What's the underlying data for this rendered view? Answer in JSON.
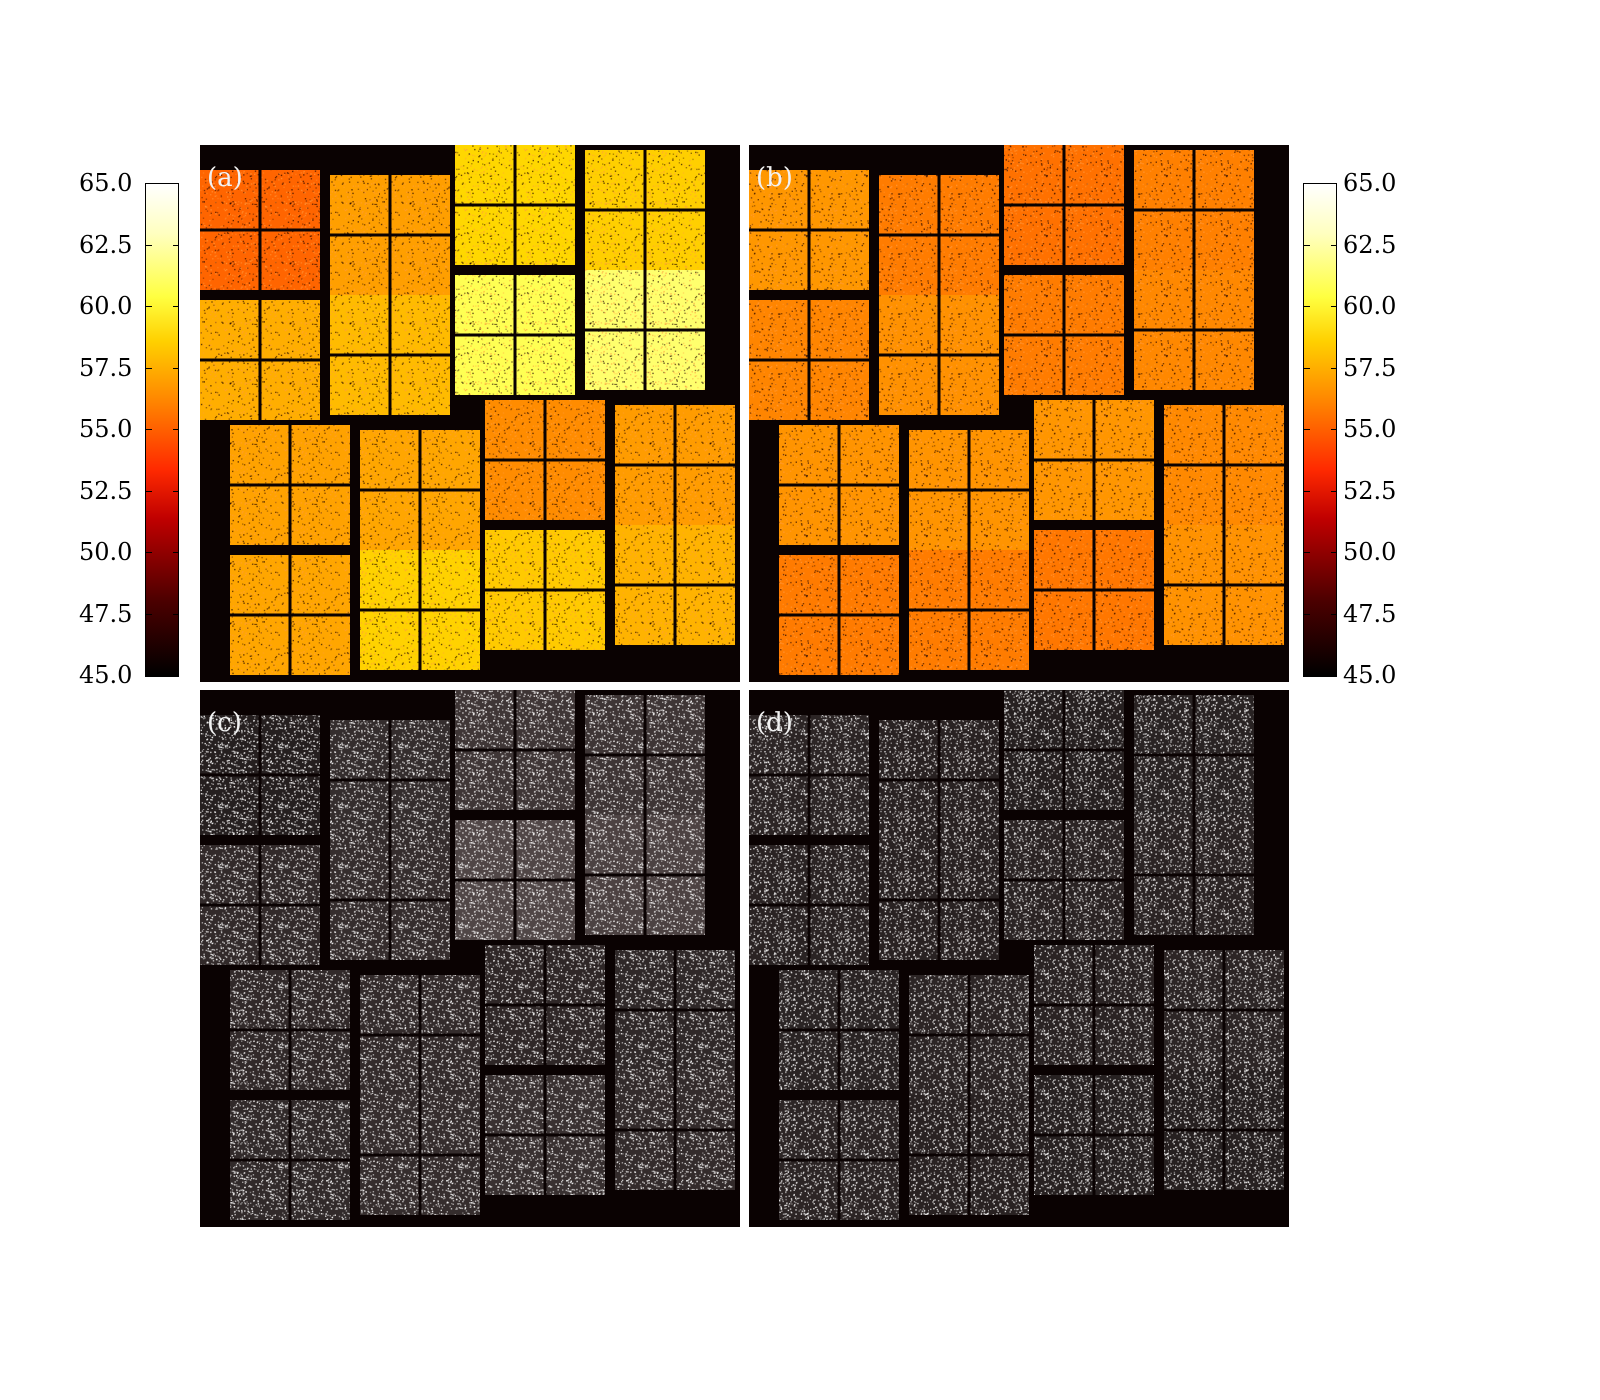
{
  "panels": [
    {
      "id": "a",
      "label": "(a)",
      "colormap": "hot",
      "mean_level": 0.32,
      "gradient": true
    },
    {
      "id": "b",
      "label": "(b)",
      "colormap": "hot",
      "mean_level": 0.28,
      "gradient": false
    },
    {
      "id": "c",
      "label": "(c)",
      "colormap": "gray-noise",
      "mean_level": 0.25,
      "gradient": true
    },
    {
      "id": "d",
      "label": "(d)",
      "colormap": "gray-noise",
      "mean_level": 0.18,
      "gradient": false
    }
  ],
  "colorbar": {
    "min": 45.0,
    "max": 65.0,
    "ticks": [
      "45.0",
      "47.5",
      "50.0",
      "52.5",
      "55.0",
      "57.5",
      "60.0",
      "62.5",
      "65.0"
    ],
    "colors": [
      "#000000",
      "#c00000",
      "#ff2a00",
      "#ff8000",
      "#ffff40",
      "#ffffff"
    ]
  }
}
